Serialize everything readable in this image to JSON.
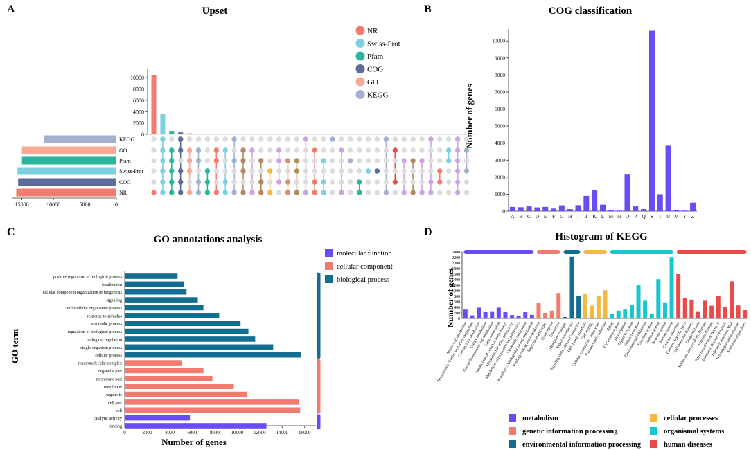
{
  "panel_labels": {
    "a": "A",
    "b": "B",
    "c": "C",
    "d": "D"
  },
  "chart_data": [
    {
      "id": "upset",
      "type": "bar",
      "title": "Upset",
      "legend": [
        {
          "name": "NR",
          "color": "#f07b6e"
        },
        {
          "name": "Swiss-Prot",
          "color": "#7dd0e0"
        },
        {
          "name": "Pfam",
          "color": "#2bb59a"
        },
        {
          "name": "COG",
          "color": "#5b6b9b"
        },
        {
          "name": "GO",
          "color": "#f6a994"
        },
        {
          "name": "KEGG",
          "color": "#a3b0cf"
        }
      ],
      "set_sizes": [
        {
          "name": "KEGG",
          "value": 11500,
          "color": "#a3b0cf"
        },
        {
          "name": "GO",
          "value": 15000,
          "color": "#f6a994"
        },
        {
          "name": "Pfam",
          "value": 15000,
          "color": "#2bb59a"
        },
        {
          "name": "Swiss-Prot",
          "value": 15700,
          "color": "#7dd0e0"
        },
        {
          "name": "COG",
          "value": 15600,
          "color": "#5b6b9b"
        },
        {
          "name": "NR",
          "value": 15900,
          "color": "#f07b6e"
        }
      ],
      "set_axis_ticks": [
        15000,
        10000,
        5000,
        0
      ],
      "intersection_axis_ticks": [
        0,
        2000,
        4000,
        6000,
        8000,
        10000
      ],
      "intersection_ylim": [
        0,
        11000
      ],
      "intersection_sizes": [
        10500,
        3600,
        600,
        350,
        200,
        120,
        60,
        45,
        35,
        30,
        25,
        22,
        20,
        18,
        15,
        14,
        12,
        11,
        10,
        9,
        8,
        7,
        6,
        6,
        5,
        5,
        4,
        4,
        3,
        3,
        3,
        2,
        2,
        2,
        2,
        1
      ],
      "intersection_colors": [
        "#f07b6e",
        "#7dd0e0",
        "#2bb59a",
        "#5b6b9b",
        "#f6a994",
        "#a3b0cf",
        "#2bb59a",
        "#f07b6e",
        "#7dd0e0",
        "#a3b0cf",
        "#b58860",
        "#cfa3e0",
        "#b58860",
        "#f5b942",
        "#cfa3e0",
        "#d4936a",
        "#b58860",
        "#cfa3e0",
        "#f07b6e",
        "#7dd0e0",
        "#a3b0cf",
        "#cfa3e0",
        "#a3b0cf",
        "#2bb59a",
        "#7dd0e0",
        "#5b6b9b",
        "#a3b0cf",
        "#e84a4a",
        "#cfa3e0",
        "#b58860",
        "#cfa3e0",
        "#cfa3e0",
        "#f07b6e",
        "#7dd0e0",
        "#cfa3e0",
        "#a3b0cf"
      ],
      "membership": [
        [
          5
        ],
        [
          5,
          4,
          3,
          2,
          1,
          0
        ],
        [
          5,
          4,
          3,
          2,
          1
        ],
        [
          5,
          4,
          3,
          1,
          0
        ],
        [
          5,
          3,
          2,
          1
        ],
        [
          5,
          4,
          2,
          1
        ],
        [
          5,
          4,
          3
        ],
        [
          5,
          2,
          1
        ],
        [
          5,
          4,
          1
        ],
        [
          5,
          2,
          0
        ],
        [
          5,
          3,
          2,
          1
        ],
        [
          5,
          1
        ],
        [
          5,
          4,
          2
        ],
        [
          5,
          3
        ],
        [
          4,
          2,
          1
        ],
        [
          5,
          4,
          2
        ],
        [
          5,
          3,
          2
        ],
        [
          5,
          0
        ],
        [
          5,
          4,
          1
        ],
        [
          5,
          4,
          2
        ],
        [
          0
        ],
        [
          5,
          1
        ],
        [
          2
        ],
        [
          5,
          4
        ],
        [
          3
        ],
        [
          3
        ],
        [
          5,
          0
        ],
        [
          4,
          1
        ],
        [
          5,
          2
        ],
        [
          5,
          2
        ],
        [
          5,
          2
        ],
        [
          5,
          4,
          0
        ],
        [
          4,
          3
        ],
        [
          2,
          1
        ],
        [
          5,
          4,
          3,
          2,
          1,
          0
        ],
        [
          3,
          1
        ]
      ]
    },
    {
      "id": "cog",
      "type": "bar",
      "title": "COG classification",
      "ylabel": "Number of genes",
      "ylim": [
        0,
        10700
      ],
      "yticks": [
        0,
        1000,
        2000,
        3000,
        4000,
        5000,
        6000,
        7000,
        8000,
        9000,
        10000
      ],
      "color": "#6a4cf4",
      "categories": [
        "A",
        "B",
        "C",
        "D",
        "E",
        "F",
        "G",
        "H",
        "I",
        "J",
        "K",
        "L",
        "M",
        "N",
        "O",
        "P",
        "Q",
        "S",
        "T",
        "U",
        "V",
        "Y",
        "Z"
      ],
      "values": [
        250,
        230,
        280,
        220,
        250,
        150,
        340,
        120,
        350,
        900,
        1250,
        380,
        80,
        10,
        2150,
        280,
        120,
        10600,
        1000,
        3850,
        70,
        10,
        500
      ]
    },
    {
      "id": "go",
      "type": "bar",
      "orientation": "horizontal",
      "title": "GO annotations analysis",
      "xlabel": "Number of genes",
      "ylabel": "GO term",
      "xlim": [
        0,
        17000
      ],
      "xticks": [
        0,
        2000,
        4000,
        6000,
        8000,
        10000,
        12000,
        14000,
        16000
      ],
      "legend": [
        {
          "name": "molecular  function",
          "color": "#6a4cf4"
        },
        {
          "name": "cellular  component",
          "color": "#f07b6e"
        },
        {
          "name": "biological  process",
          "color": "#126e91"
        }
      ],
      "categories": [
        "positive regulation of biological process",
        "localization",
        "cellular component organization or biogenesis",
        "signaling",
        "multicellular organismal process",
        "response to stimulus",
        "metabolic process",
        "regulation of biological process",
        "biological regulation",
        "single-organism process",
        "cellular process",
        "macromolecular complex",
        "organelle part",
        "membrane part",
        "membrane",
        "organelle",
        "cell part",
        "cell",
        "catalytic activity",
        "binding"
      ],
      "values": [
        4700,
        5300,
        5500,
        6500,
        7000,
        8400,
        10300,
        11000,
        11600,
        13200,
        15700,
        5100,
        7000,
        7800,
        9700,
        10900,
        15500,
        15600,
        5800,
        12600
      ],
      "groups": [
        2,
        2,
        2,
        2,
        2,
        2,
        2,
        2,
        2,
        2,
        2,
        1,
        1,
        1,
        1,
        1,
        1,
        1,
        0,
        0
      ]
    },
    {
      "id": "kegg",
      "type": "bar",
      "title": "Histogram of KEGG",
      "ylabel": "Number of genes",
      "ylim": [
        0,
        2400
      ],
      "yticks": [
        0,
        200,
        400,
        600,
        800,
        1000,
        1200,
        1400,
        1600,
        1800,
        2000,
        2200,
        2400
      ],
      "legend": [
        {
          "name": "metabolism",
          "color": "#6a4cf4"
        },
        {
          "name": "genetic information processing",
          "color": "#f07b6e"
        },
        {
          "name": "environmental information processing",
          "color": "#126e91"
        },
        {
          "name": "cellular processes",
          "color": "#f5b942"
        },
        {
          "name": "organismal systems",
          "color": "#19c6cf"
        },
        {
          "name": "human diseases",
          "color": "#e84a4a"
        }
      ],
      "categories": [
        "Amino acid metabolism",
        "Biosynthesis of other secondary metabolites",
        "Carbohydrate metabolism",
        "Energy metabolism",
        "Glycan biosynthesis and metabolism",
        "Lipid metabolism",
        "Metabolism of cofactors and vitamins",
        "Metabolism of other amino acids",
        "Metabolism of terpenoids and polyketides",
        "Nucleotide metabolism",
        "Xenobiotics biodegradation and metabolism",
        "Folding, sorting and degradation",
        "Replication and repair",
        "Transcription",
        "Translation",
        "Membrane transport",
        "Signal transduction",
        "Signaling molecules and interaction",
        "Cell growth and death",
        "Cell motility",
        "Cellular community - eukaryotes",
        "Transport and catabolism",
        "Aging",
        "Circulatory system",
        "Development",
        "Digestive system",
        "Endocrine system",
        "Environmental adaptation",
        "Excretory system",
        "Immune system",
        "Nervous system",
        "Sensory system",
        "Cancers: Overview",
        "Cancers: Specific types",
        "Cardiovascular diseases",
        "Drug resistance",
        "Endocrine and metabolic diseases",
        "Immune diseases",
        "Infectious diseases: Bacterial",
        "Infectious diseases: Parasitic",
        "Infectious diseases: Viral",
        "Neurodegenerative diseases",
        "Substance dependence"
      ],
      "values": [
        320,
        110,
        390,
        230,
        260,
        390,
        230,
        120,
        80,
        230,
        130,
        560,
        200,
        280,
        920,
        50,
        2230,
        820,
        880,
        460,
        800,
        1020,
        160,
        280,
        320,
        500,
        1200,
        640,
        180,
        1420,
        580,
        2220,
        1600,
        740,
        680,
        260,
        640,
        460,
        820,
        420,
        1340,
        470,
        300
      ],
      "groups": [
        0,
        0,
        0,
        0,
        0,
        0,
        0,
        0,
        0,
        0,
        0,
        1,
        1,
        1,
        1,
        2,
        2,
        2,
        3,
        3,
        3,
        3,
        4,
        4,
        4,
        4,
        4,
        4,
        4,
        4,
        4,
        4,
        5,
        5,
        5,
        5,
        5,
        5,
        5,
        5,
        5,
        5,
        5
      ]
    }
  ]
}
